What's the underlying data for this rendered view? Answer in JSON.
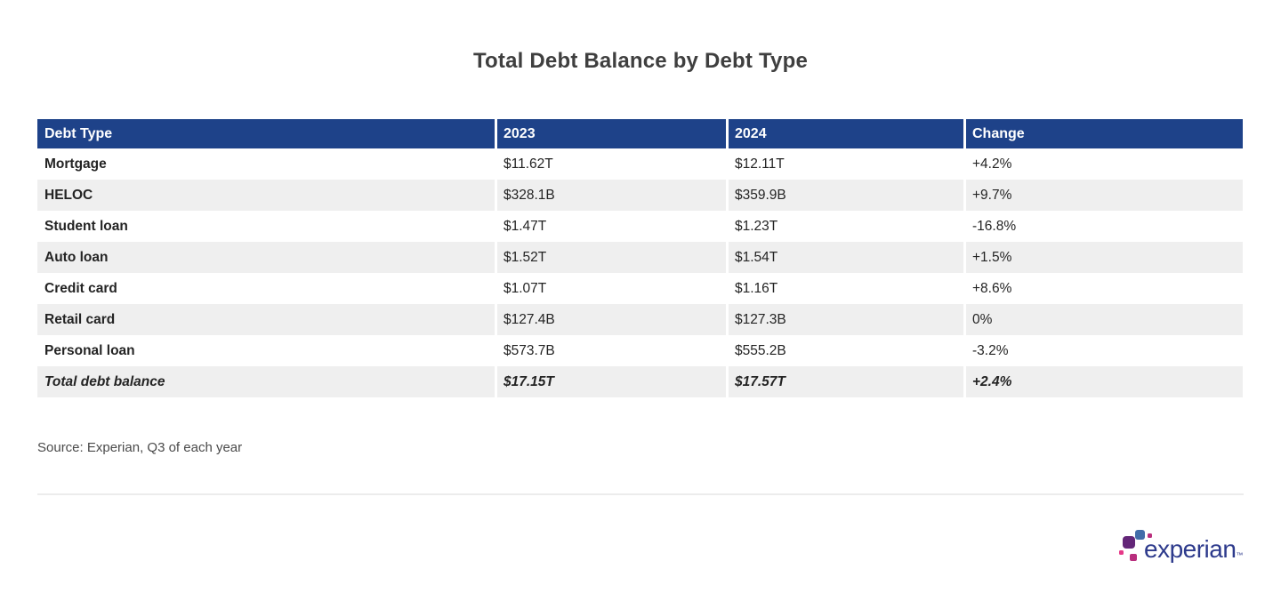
{
  "title": "Total Debt Balance by Debt Type",
  "chart_data": {
    "type": "table",
    "title": "Total Debt Balance by Debt Type",
    "columns": [
      "Debt Type",
      "2023",
      "2024",
      "Change"
    ],
    "rows": [
      [
        "Mortgage",
        "$11.62T",
        "$12.11T",
        "+4.2%"
      ],
      [
        "HELOC",
        "$328.1B",
        "$359.9B",
        "+9.7%"
      ],
      [
        "Student loan",
        "$1.47T",
        "$1.23T",
        "-16.8%"
      ],
      [
        "Auto loan",
        "$1.52T",
        "$1.54T",
        "+1.5%"
      ],
      [
        "Credit card",
        "$1.07T",
        "$1.16T",
        "+8.6%"
      ],
      [
        "Retail card",
        "$127.4B",
        "$127.3B",
        "0%"
      ],
      [
        "Personal loan",
        "$573.7B",
        "$555.2B",
        "-3.2%"
      ],
      [
        "Total debt balance",
        "$17.15T",
        "$17.57T",
        "+2.4%"
      ]
    ],
    "total_row_index": 7,
    "layout": {
      "zebra_striping": true,
      "total_row_style": "bold-italic"
    }
  },
  "source_note": "Source: Experian, Q3 of each year",
  "logo": {
    "wordmark": "experian",
    "trademark_symbol": "™"
  },
  "colors": {
    "header_bg": "#1e4289",
    "header_text": "#ffffff",
    "zebra_row_bg": "#efefef",
    "body_text": "#242424",
    "title_text": "#3f3f3f",
    "logo_wordmark": "#2d3a8c",
    "logo_blue": "#426da9",
    "logo_purple": "#632678",
    "logo_magenta": "#ba2f7d",
    "logo_pink": "#e63888"
  }
}
